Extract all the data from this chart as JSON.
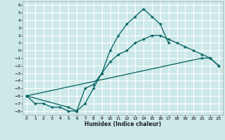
{
  "xlabel": "Humidex (Indice chaleur)",
  "bg_color": "#cce8e8",
  "grid_color": "#ffffff",
  "line_color": "#006060",
  "xlim": [
    -0.5,
    23.5
  ],
  "ylim": [
    -8.5,
    6.5
  ],
  "xticks": [
    0,
    1,
    2,
    3,
    4,
    5,
    6,
    7,
    8,
    9,
    10,
    11,
    12,
    13,
    14,
    15,
    16,
    17,
    18,
    19,
    20,
    21,
    22,
    23
  ],
  "yticks": [
    -8,
    -7,
    -6,
    -5,
    -4,
    -3,
    -2,
    -1,
    0,
    1,
    2,
    3,
    4,
    5,
    6
  ],
  "line1_x": [
    0,
    1,
    2,
    3,
    4,
    5,
    6,
    7,
    8,
    9,
    10,
    11,
    12,
    13,
    14,
    15,
    16,
    17
  ],
  "line1_y": [
    -6,
    -7,
    -7,
    -7.5,
    -7.5,
    -8,
    -8,
    -7,
    -5,
    -3,
    0,
    2,
    3.5,
    4.5,
    5.5,
    4.5,
    3.5,
    1
  ],
  "line2_x": [
    0,
    5,
    6,
    7,
    8,
    9,
    10,
    11,
    12,
    13,
    14,
    15,
    16,
    17,
    18,
    19,
    20,
    21,
    22,
    23
  ],
  "line2_y": [
    -6,
    -7.5,
    -8,
    -5,
    -4.5,
    -3,
    -1.5,
    -0.5,
    0,
    1,
    1.5,
    2,
    2,
    1.5,
    1,
    0.5,
    0,
    -0.5,
    -1,
    -2
  ],
  "line3_x": [
    0,
    21,
    22,
    23
  ],
  "line3_y": [
    -6,
    -1,
    -1,
    -2
  ]
}
